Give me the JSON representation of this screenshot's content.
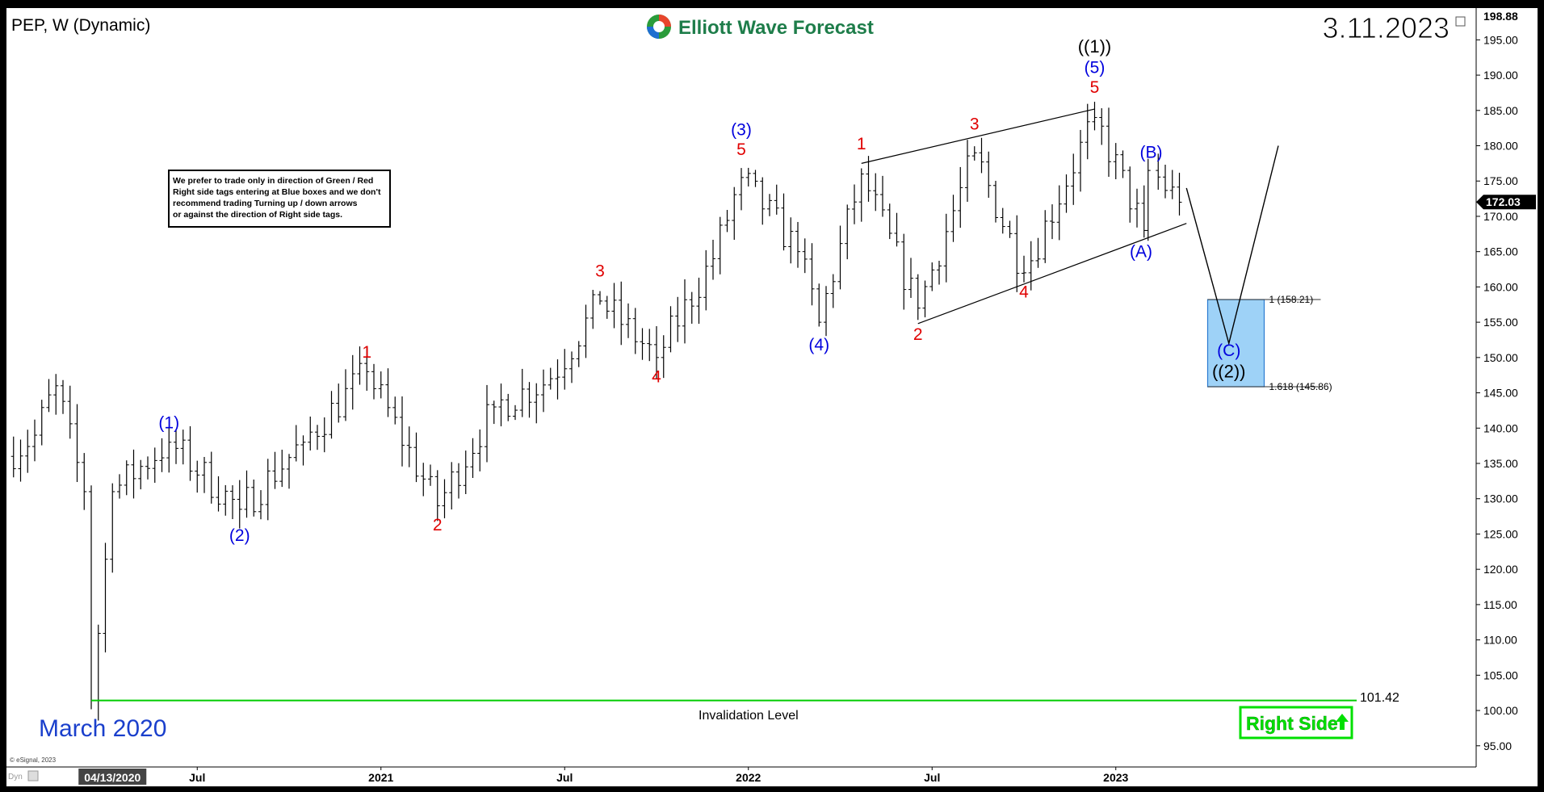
{
  "header": {
    "symbol_title": "PEP, W (Dynamic)",
    "brand": "Elliott Wave Forecast",
    "date": "3.11.2023"
  },
  "note": {
    "lines": [
      "We prefer to trade only in direction of Green / Red",
      "Right side tags entering at Blue boxes and we don't",
      "recommend trading Turning up / down arrows",
      "or against the direction of Right side tags."
    ]
  },
  "footer": {
    "march_label": "March 2020",
    "invalidation_label": "Invalidation Level",
    "invalidation_value": "101.42",
    "right_side_label": "Right Side",
    "copyright": "© eSignal, 2023",
    "dyn": "Dyn"
  },
  "colors": {
    "blue_label": "#0000dd",
    "red_label": "#e00000",
    "green": "#00e000",
    "box_fill": "#9ed2f7",
    "box_stroke": "#2a7ad0"
  },
  "chart_data": {
    "type": "ohlc",
    "title": "PEP, W (Dynamic)",
    "y_axis": {
      "min": 92,
      "max": 199.5,
      "ticks": [
        "95.00",
        "100.00",
        "105.00",
        "110.00",
        "115.00",
        "120.00",
        "125.00",
        "130.00",
        "135.00",
        "140.00",
        "145.00",
        "150.00",
        "155.00",
        "160.00",
        "165.00",
        "170.00",
        "175.00",
        "180.00",
        "185.00",
        "190.00",
        "195.00"
      ],
      "top_price_label": "198.88",
      "last_price_label": "172.03"
    },
    "x_axis": {
      "ticks": [
        "04/13/2020",
        "Jul",
        "2021",
        "Jul",
        "2022",
        "Jul",
        "2023"
      ]
    },
    "fib_levels": [
      {
        "label": "1 (158.21)",
        "price": 158.21
      },
      {
        "label": "1.618 (145.86)",
        "price": 145.86
      }
    ],
    "invalidation_price": 101.42,
    "wave_labels": [
      {
        "text": "(1)",
        "color": "blue",
        "date": "2020-06-08",
        "price": 140.0
      },
      {
        "text": "(2)",
        "color": "blue",
        "date": "2020-08-17",
        "price": 124.0
      },
      {
        "text": "1",
        "color": "red",
        "date": "2020-12-21",
        "price": 150.0
      },
      {
        "text": "2",
        "color": "red",
        "date": "2021-03-01",
        "price": 125.5
      },
      {
        "text": "3",
        "color": "red",
        "date": "2021-08-09",
        "price": 161.5
      },
      {
        "text": "4",
        "color": "red",
        "date": "2021-10-04",
        "price": 146.5
      },
      {
        "text": "5",
        "color": "red",
        "date": "2021-12-27",
        "price": 178.7
      },
      {
        "text": "(3)",
        "color": "blue",
        "date": "2021-12-27",
        "price": 181.5
      },
      {
        "text": "(4)",
        "color": "blue",
        "date": "2022-03-14",
        "price": 151.0
      },
      {
        "text": "1",
        "color": "red",
        "date": "2022-04-25",
        "price": 179.5
      },
      {
        "text": "2",
        "color": "red",
        "date": "2022-06-20",
        "price": 152.5
      },
      {
        "text": "3",
        "color": "red",
        "date": "2022-08-15",
        "price": 182.3
      },
      {
        "text": "4",
        "color": "red",
        "date": "2022-10-03",
        "price": 158.5
      },
      {
        "text": "5",
        "color": "red",
        "date": "2022-12-12",
        "price": 187.5
      },
      {
        "text": "(5)",
        "color": "blue",
        "date": "2022-12-12",
        "price": 190.3
      },
      {
        "text": "((1))",
        "color": "black",
        "date": "2022-12-12",
        "price": 193.2
      },
      {
        "text": "(B)",
        "color": "blue",
        "date": "2023-02-06",
        "price": 178.3
      },
      {
        "text": "(A)",
        "color": "blue",
        "date": "2023-01-27",
        "price": 164.2
      },
      {
        "text": "(C)",
        "color": "blue",
        "date": "2023-04-24",
        "price": 150.2
      },
      {
        "text": "((2))",
        "color": "black",
        "date": "2023-04-24",
        "price": 147.2
      }
    ],
    "projection_path": [
      {
        "date": "2023-03-13",
        "price": 174.0
      },
      {
        "date": "2023-04-24",
        "price": 152.0
      },
      {
        "date": "2023-06-12",
        "price": 180.0
      }
    ],
    "blue_box": {
      "date_start": "2023-04-03",
      "date_end": "2023-05-29",
      "price_top": 158.21,
      "price_bottom": 145.86
    },
    "wedge_lines": [
      [
        {
          "date": "2022-04-25",
          "price": 177.5
        },
        {
          "date": "2022-12-12",
          "price": 185.2
        }
      ],
      [
        {
          "date": "2022-06-20",
          "price": 154.8
        },
        {
          "date": "2023-03-13",
          "price": 169.0
        }
      ]
    ],
    "anchors": [
      {
        "date": "2020-03-16",
        "price": 131.0
      },
      {
        "date": "2020-03-23",
        "price": 101.42
      },
      {
        "date": "2020-04-13",
        "price": 131.0
      },
      {
        "date": "2020-06-08",
        "price": 138.0
      },
      {
        "date": "2020-08-17",
        "price": 128.5
      },
      {
        "date": "2020-10-19",
        "price": 138.0
      },
      {
        "date": "2020-12-21",
        "price": 148.0
      },
      {
        "date": "2021-03-01",
        "price": 129.0
      },
      {
        "date": "2021-04-26",
        "price": 143.0
      },
      {
        "date": "2021-06-21",
        "price": 147.0
      },
      {
        "date": "2021-08-09",
        "price": 158.0
      },
      {
        "date": "2021-10-04",
        "price": 150.0
      },
      {
        "date": "2021-11-29",
        "price": 164.0
      },
      {
        "date": "2021-12-27",
        "price": 175.5
      },
      {
        "date": "2022-02-21",
        "price": 165.0
      },
      {
        "date": "2022-03-14",
        "price": 155.0
      },
      {
        "date": "2022-04-25",
        "price": 176.0
      },
      {
        "date": "2022-06-20",
        "price": 157.0
      },
      {
        "date": "2022-08-15",
        "price": 179.0
      },
      {
        "date": "2022-10-03",
        "price": 162.0
      },
      {
        "date": "2022-12-12",
        "price": 184.0
      },
      {
        "date": "2023-01-27",
        "price": 168.0
      },
      {
        "date": "2023-02-06",
        "price": 176.5
      },
      {
        "date": "2023-03-06",
        "price": 172.0
      }
    ],
    "lead_in": [
      {
        "date": "2019-12-30",
        "price": 136.0
      },
      {
        "date": "2020-01-27",
        "price": 139.0
      },
      {
        "date": "2020-02-17",
        "price": 146.0
      }
    ]
  }
}
